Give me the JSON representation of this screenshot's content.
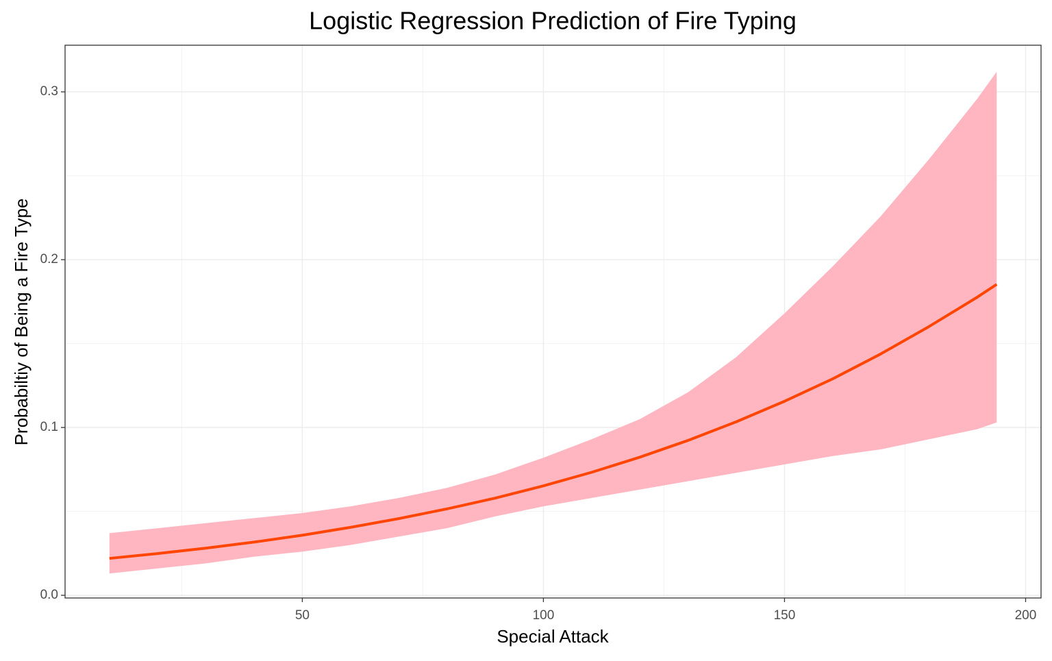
{
  "chart_data": {
    "type": "line",
    "title": "Logistic Regression Prediction of Fire Typing",
    "x_label": "Special Attack",
    "y_label": "Probabiltiy of Being a Fire Type",
    "x": [
      10,
      20,
      30,
      40,
      50,
      60,
      70,
      80,
      90,
      100,
      110,
      120,
      130,
      140,
      150,
      160,
      170,
      180,
      190,
      194
    ],
    "series": [
      {
        "color": "#FF4500",
        "band_color": "#FFB6C1",
        "values": [
          0.022,
          0.0249,
          0.0281,
          0.0317,
          0.0358,
          0.0405,
          0.0457,
          0.0515,
          0.0579,
          0.0652,
          0.0733,
          0.0823,
          0.0923,
          0.1034,
          0.1156,
          0.129,
          0.1439,
          0.1602,
          0.1777,
          0.1853
        ],
        "upper": [
          0.037,
          0.04,
          0.043,
          0.046,
          0.049,
          0.053,
          0.058,
          0.064,
          0.072,
          0.082,
          0.093,
          0.105,
          0.121,
          0.142,
          0.168,
          0.196,
          0.226,
          0.26,
          0.296,
          0.312
        ],
        "lower": [
          0.013,
          0.016,
          0.019,
          0.023,
          0.026,
          0.03,
          0.035,
          0.04,
          0.047,
          0.053,
          0.058,
          0.063,
          0.068,
          0.073,
          0.078,
          0.083,
          0.087,
          0.093,
          0.099,
          0.103
        ]
      }
    ],
    "xlim": [
      0.8,
      203.2
    ],
    "ylim": [
      -0.0016,
      0.3278
    ],
    "xticks": [
      50,
      100,
      150,
      200
    ],
    "yticks": [
      {
        "value": 0,
        "label": "0.0"
      },
      0.1,
      0.2,
      0.3
    ],
    "x_minor_ticks": [
      25,
      75,
      125,
      175
    ],
    "y_minor_ticks": [
      0.05,
      0.15,
      0.25
    ],
    "grid": true
  }
}
